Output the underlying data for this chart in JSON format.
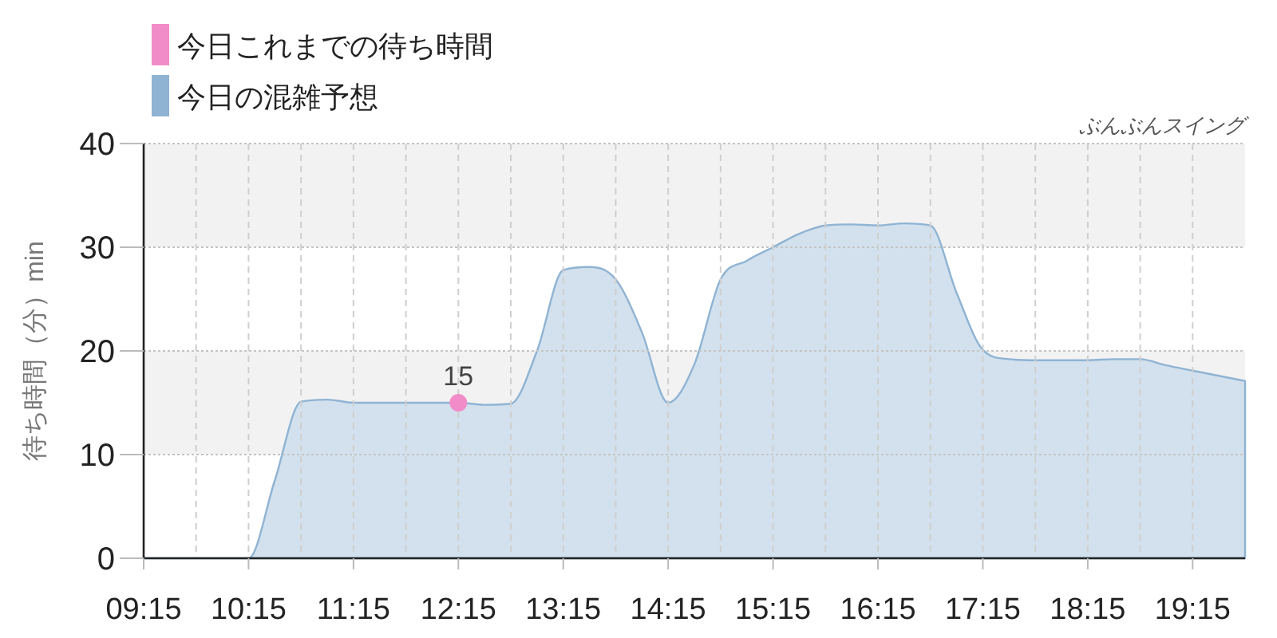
{
  "chart_data": {
    "type": "area",
    "title": "ぶんぶんスイング",
    "ylabel": "待ち時間（分）min",
    "x": [
      9.25,
      9.5,
      9.75,
      10,
      10.25,
      10.5,
      10.75,
      11,
      11.25,
      11.5,
      11.75,
      12,
      12.25,
      12.5,
      12.75,
      13,
      13.25,
      13.5,
      13.75,
      14,
      14.25,
      14.5,
      14.75,
      15,
      15.25,
      15.5,
      15.75,
      16,
      16.25,
      16.5,
      16.75,
      17,
      17.25,
      17.5,
      17.75,
      18,
      18.25,
      18.5,
      18.75,
      19,
      19.25,
      19.5,
      19.75
    ],
    "series": [
      {
        "name": "今日これまでの待ち時間",
        "type": "scatter",
        "color": "#f28cc9",
        "x": [
          12.25
        ],
        "values": [
          15
        ],
        "value_labels": [
          "15"
        ]
      },
      {
        "name": "今日の混雑予想",
        "color": "#8fb3d3",
        "values": [
          0,
          0,
          0,
          0,
          0,
          7.5,
          15.1,
          15.3,
          15.0,
          15.0,
          15.0,
          15.0,
          15.0,
          14.8,
          14.9,
          20.0,
          27.8,
          28.1,
          26.9,
          21.8,
          15.0,
          18.7,
          26.9,
          28.7,
          30.0,
          31.3,
          32.1,
          32.2,
          32.1,
          32.3,
          32.1,
          25.6,
          20.1,
          19.2,
          19.1,
          19.1,
          19.1,
          19.2,
          19.2,
          18.6,
          18.1,
          17.6,
          17.1
        ]
      }
    ],
    "xlim": [
      9.25,
      19.75
    ],
    "xticks": [
      {
        "value": 9.25,
        "label": "09:15"
      },
      {
        "value": 9.75,
        "label": null
      },
      {
        "value": 10.25,
        "label": "10:15"
      },
      {
        "value": 10.75,
        "label": null
      },
      {
        "value": 11.25,
        "label": "11:15"
      },
      {
        "value": 11.75,
        "label": null
      },
      {
        "value": 12.25,
        "label": "12:15"
      },
      {
        "value": 12.75,
        "label": null
      },
      {
        "value": 13.25,
        "label": "13:15"
      },
      {
        "value": 13.75,
        "label": null
      },
      {
        "value": 14.25,
        "label": "14:15"
      },
      {
        "value": 14.75,
        "label": null
      },
      {
        "value": 15.25,
        "label": "15:15"
      },
      {
        "value": 15.75,
        "label": null
      },
      {
        "value": 16.25,
        "label": "16:15"
      },
      {
        "value": 16.75,
        "label": null
      },
      {
        "value": 17.25,
        "label": "17:15"
      },
      {
        "value": 17.75,
        "label": null
      },
      {
        "value": 18.25,
        "label": "18:15"
      },
      {
        "value": 18.75,
        "label": null
      },
      {
        "value": 19.25,
        "label": "19:15"
      }
    ],
    "ylim": [
      0,
      40
    ],
    "yticks": [
      0,
      10,
      20,
      30,
      40
    ],
    "bands": [
      {
        "axis": "y",
        "from": 10,
        "to": 20,
        "color": "#f2f2f2"
      },
      {
        "axis": "y",
        "from": 30,
        "to": 40,
        "color": "#f2f2f2"
      }
    ],
    "grid": true,
    "legend": "top left"
  }
}
